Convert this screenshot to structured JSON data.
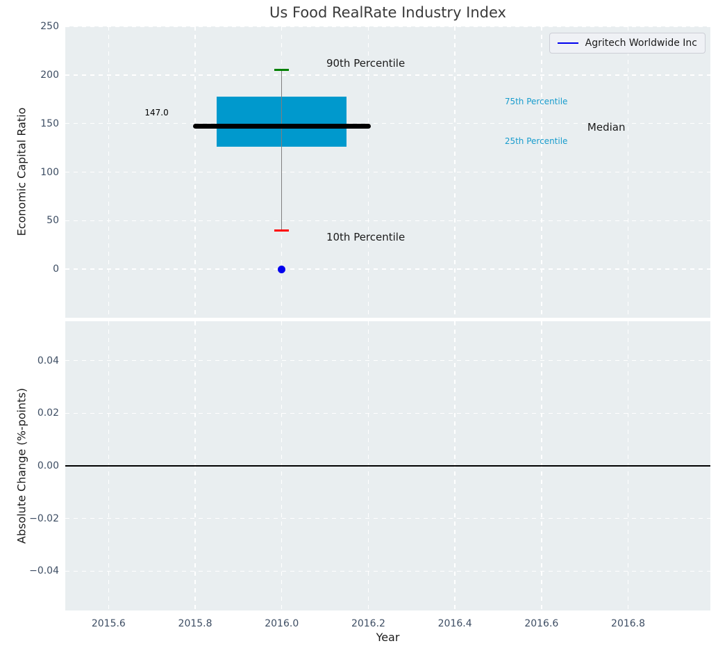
{
  "title": "Us Food RealRate Industry Index",
  "legend": {
    "label": "Agritech Worldwide Inc",
    "line_color": "#0000ee"
  },
  "colors": {
    "figure_bg": "#ffffff",
    "plot_bg": "#e9eef0",
    "grid": "#ffffff",
    "box_fill": "#0099cd",
    "median_line": "#000000",
    "whisker": "#7f7f7f",
    "cap_90th": "#008000",
    "cap_10th": "#ff0000",
    "company_point": "#0000ee",
    "tick_label": "#3d4d63",
    "axis_label": "#1a1a1a",
    "title": "#3a3a3a",
    "percentile_label": "#189ccd",
    "zero_line": "#000000"
  },
  "chart_data": [
    {
      "type": "box",
      "title": "Us Food RealRate Industry Index",
      "ylabel": "Economic Capital Ratio",
      "ylim": [
        -50,
        250
      ],
      "xlim": [
        2015.5,
        2016.99
      ],
      "grid": true,
      "legend_position": "upper right",
      "yticks": {
        "values": [
          250,
          200,
          150,
          100,
          50,
          0
        ],
        "labels": [
          "250",
          "200",
          "150",
          "100",
          "50",
          "0"
        ]
      },
      "xticks": {
        "values": [
          2015.6,
          2015.8,
          2016.0,
          2016.2,
          2016.4,
          2016.6,
          2016.8
        ],
        "labels": []
      },
      "box": {
        "year": 2016.0,
        "p90": 205,
        "p75": 178,
        "median": 147,
        "p25": 126,
        "p10": 40,
        "box_left": 2015.85,
        "box_right": 2016.15,
        "median_left": 2015.795,
        "median_right": 2016.205,
        "cap_width_years": 0.034
      },
      "series": [
        {
          "name": "Agritech Worldwide Inc",
          "points": [
            {
              "x": 2016.0,
              "y": 0
            }
          ]
        }
      ],
      "annotations": [
        {
          "name": "median-value-label",
          "text": "147.0",
          "x": 2015.711,
          "y": 161,
          "size": 12,
          "color": "#000000",
          "align": "center"
        },
        {
          "name": "p90-label",
          "text": "90th Percentile",
          "x": 2016.103,
          "y": 212,
          "size": 15,
          "color": "#1a1a1a",
          "align": "left"
        },
        {
          "name": "p75-label",
          "text": "75th Percentile",
          "x": 2016.515,
          "y": 173,
          "size": 12,
          "color": "#189ccd",
          "align": "left"
        },
        {
          "name": "median-label",
          "text": "Median",
          "x": 2016.706,
          "y": 146,
          "size": 15,
          "color": "#1a1a1a",
          "align": "left"
        },
        {
          "name": "p25-label",
          "text": "25th Percentile",
          "x": 2016.515,
          "y": 132,
          "size": 12,
          "color": "#189ccd",
          "align": "left"
        },
        {
          "name": "p10-label",
          "text": "10th Percentile",
          "x": 2016.103,
          "y": 33,
          "size": 15,
          "color": "#1a1a1a",
          "align": "left"
        }
      ]
    },
    {
      "type": "line",
      "ylabel": "Absolute Change (%-points)",
      "xlabel": "Year",
      "ylim": [
        -0.055,
        0.055
      ],
      "xlim": [
        2015.5,
        2016.99
      ],
      "grid": true,
      "yticks": {
        "values": [
          0.04,
          0.02,
          0,
          -0.02,
          -0.04
        ],
        "labels": [
          "0.04",
          "0.02",
          "0.00",
          "−0.02",
          "−0.04"
        ]
      },
      "xticks": {
        "values": [
          2015.6,
          2015.8,
          2016.0,
          2016.2,
          2016.4,
          2016.6,
          2016.8
        ],
        "labels": [
          "2015.6",
          "2015.8",
          "2016.0",
          "2016.2",
          "2016.4",
          "2016.6",
          "2016.8"
        ]
      },
      "zero_line": 0.0,
      "series": []
    }
  ]
}
